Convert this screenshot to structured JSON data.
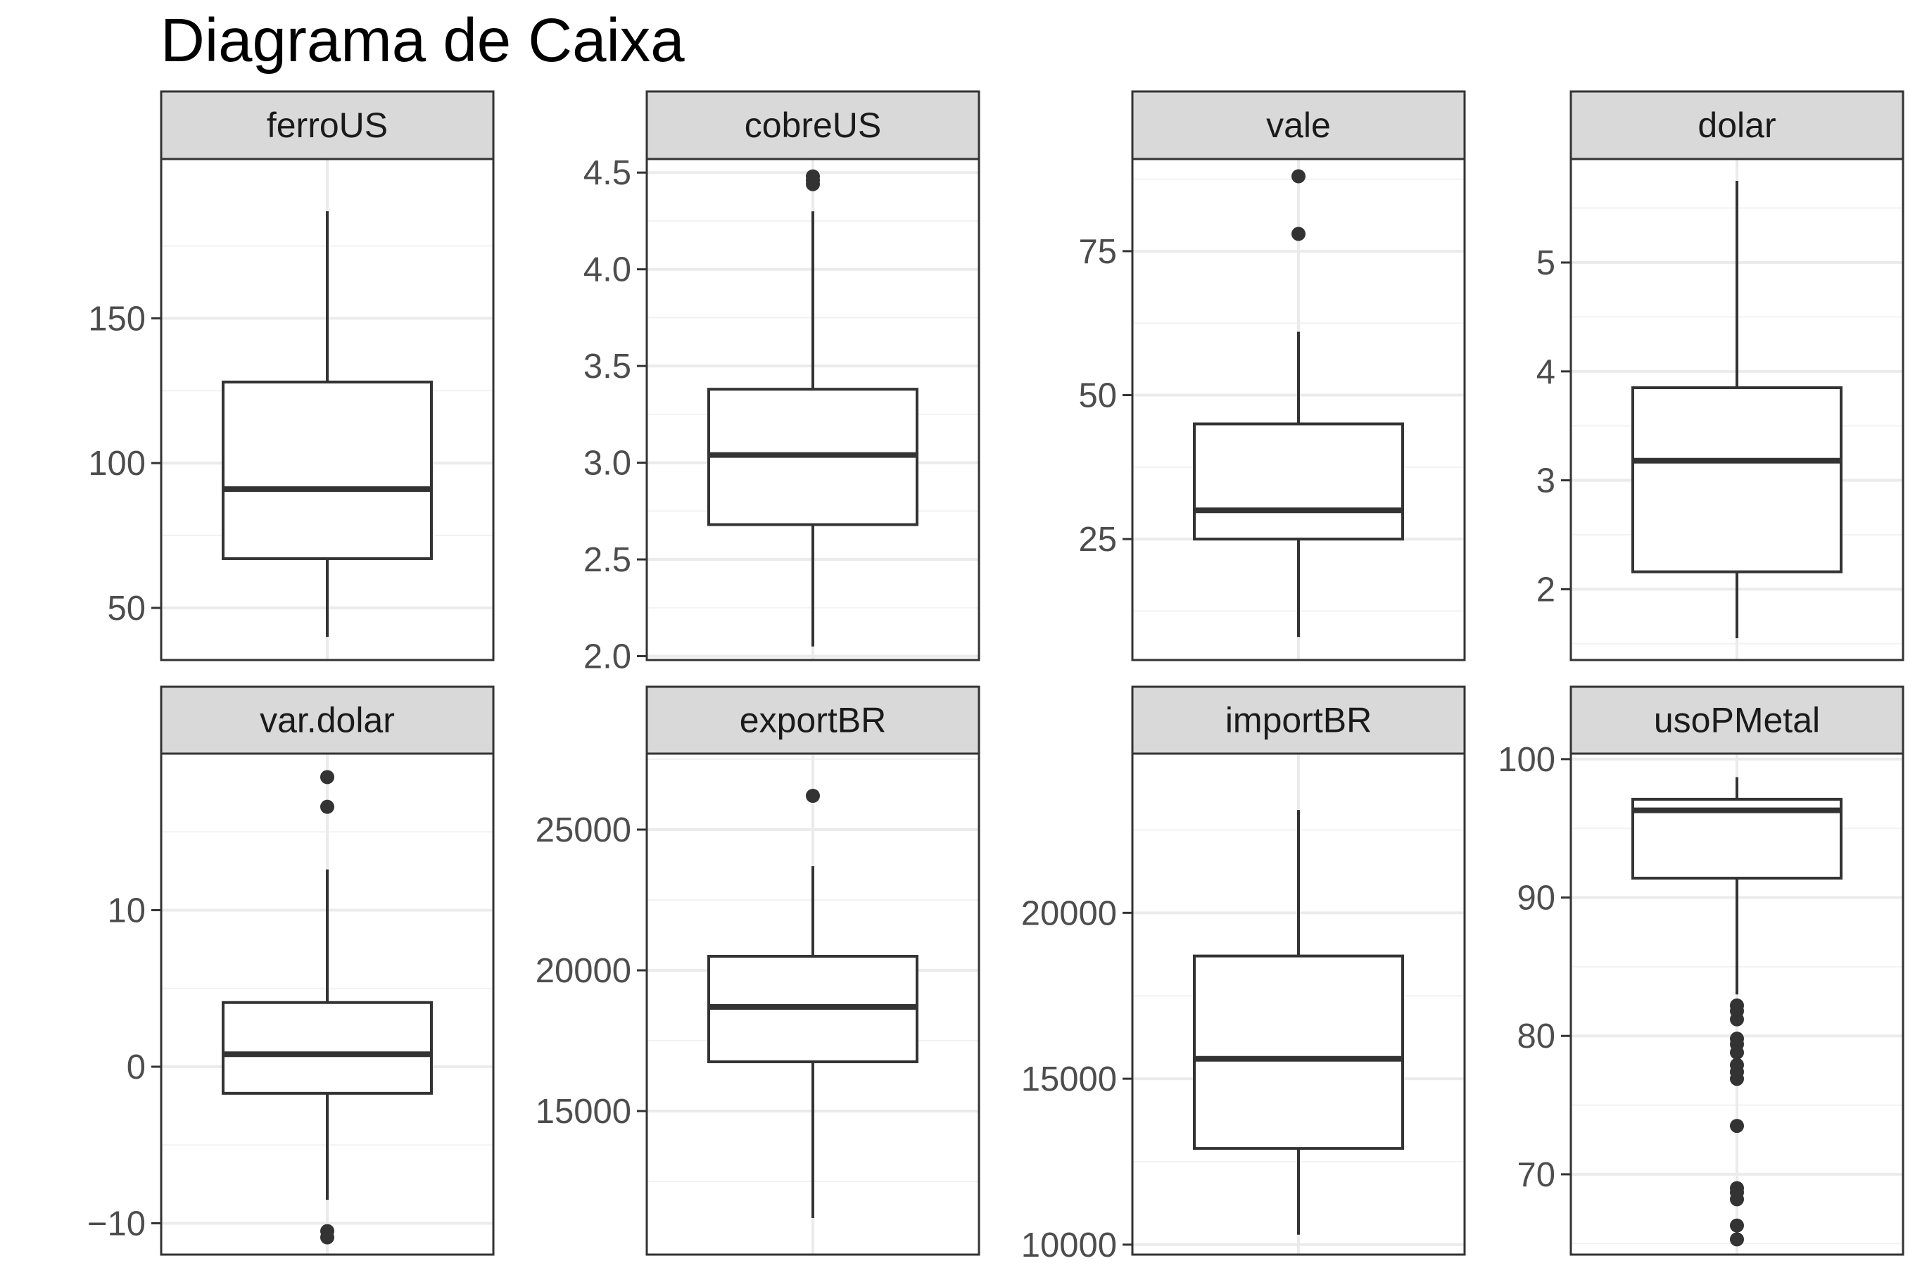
{
  "chart_data": {
    "type": "boxplot",
    "title": "Diagrama de Caixa",
    "facets": [
      {
        "name": "ferroUS",
        "ylim": [
          32,
          205
        ],
        "ticks": [
          50,
          100,
          150
        ],
        "tick_labels": [
          "50",
          "100",
          "150"
        ],
        "whisker_low": 40,
        "q1": 67,
        "median": 91,
        "q3": 128,
        "whisker_high": 187,
        "outliers": []
      },
      {
        "name": "cobreUS",
        "ylim": [
          1.98,
          4.57
        ],
        "ticks": [
          2.0,
          2.5,
          3.0,
          3.5,
          4.0,
          4.5
        ],
        "tick_labels": [
          "2.0",
          "2.5",
          "3.0",
          "3.5",
          "4.0",
          "4.5"
        ],
        "whisker_low": 2.05,
        "q1": 2.68,
        "median": 3.04,
        "q3": 3.38,
        "whisker_high": 4.3,
        "outliers": [
          4.44,
          4.46,
          4.48
        ]
      },
      {
        "name": "vale",
        "ylim": [
          4,
          91
        ],
        "ticks": [
          25,
          50,
          75
        ],
        "tick_labels": [
          "25",
          "50",
          "75"
        ],
        "whisker_low": 8,
        "q1": 25,
        "median": 30,
        "q3": 45,
        "whisker_high": 61,
        "outliers": [
          78,
          88
        ]
      },
      {
        "name": "dolar",
        "ylim": [
          1.35,
          5.95
        ],
        "ticks": [
          2,
          3,
          4,
          5
        ],
        "tick_labels": [
          "2",
          "3",
          "4",
          "5"
        ],
        "whisker_low": 1.55,
        "q1": 2.16,
        "median": 3.18,
        "q3": 3.85,
        "whisker_high": 5.75,
        "outliers": []
      },
      {
        "name": "var.dolar",
        "ylim": [
          -12,
          20
        ],
        "ticks": [
          -10,
          0,
          10
        ],
        "tick_labels": [
          "−10",
          "0",
          "10"
        ],
        "whisker_low": -8.5,
        "q1": -1.7,
        "median": 0.8,
        "q3": 4.1,
        "whisker_high": 12.6,
        "outliers": [
          -10.9,
          -10.5,
          16.6,
          18.5
        ]
      },
      {
        "name": "exportBR",
        "ylim": [
          9900,
          27700
        ],
        "ticks": [
          15000,
          20000,
          25000
        ],
        "tick_labels": [
          "15000",
          "20000",
          "25000"
        ],
        "whisker_low": 11200,
        "q1": 16750,
        "median": 18700,
        "q3": 20500,
        "whisker_high": 23700,
        "outliers": [
          26200
        ]
      },
      {
        "name": "importBR",
        "ylim": [
          9700,
          24800
        ],
        "ticks": [
          10000,
          15000,
          20000
        ],
        "tick_labels": [
          "10000",
          "15000",
          "20000"
        ],
        "whisker_low": 10300,
        "q1": 12900,
        "median": 15600,
        "q3": 18700,
        "whisker_high": 23100,
        "outliers": []
      },
      {
        "name": "usoPMetal",
        "ylim": [
          64.2,
          100.4
        ],
        "ticks": [
          70,
          80,
          90,
          100
        ],
        "tick_labels": [
          "70",
          "80",
          "90",
          "100"
        ],
        "whisker_low": 83,
        "q1": 91.4,
        "median": 96.3,
        "q3": 97.1,
        "whisker_high": 98.7,
        "outliers": [
          65.3,
          66.3,
          68.2,
          68.7,
          69.0,
          73.5,
          76.9,
          77.4,
          77.9,
          78.8,
          79.4,
          79.8,
          81.2,
          81.8,
          82.2
        ]
      }
    ]
  }
}
